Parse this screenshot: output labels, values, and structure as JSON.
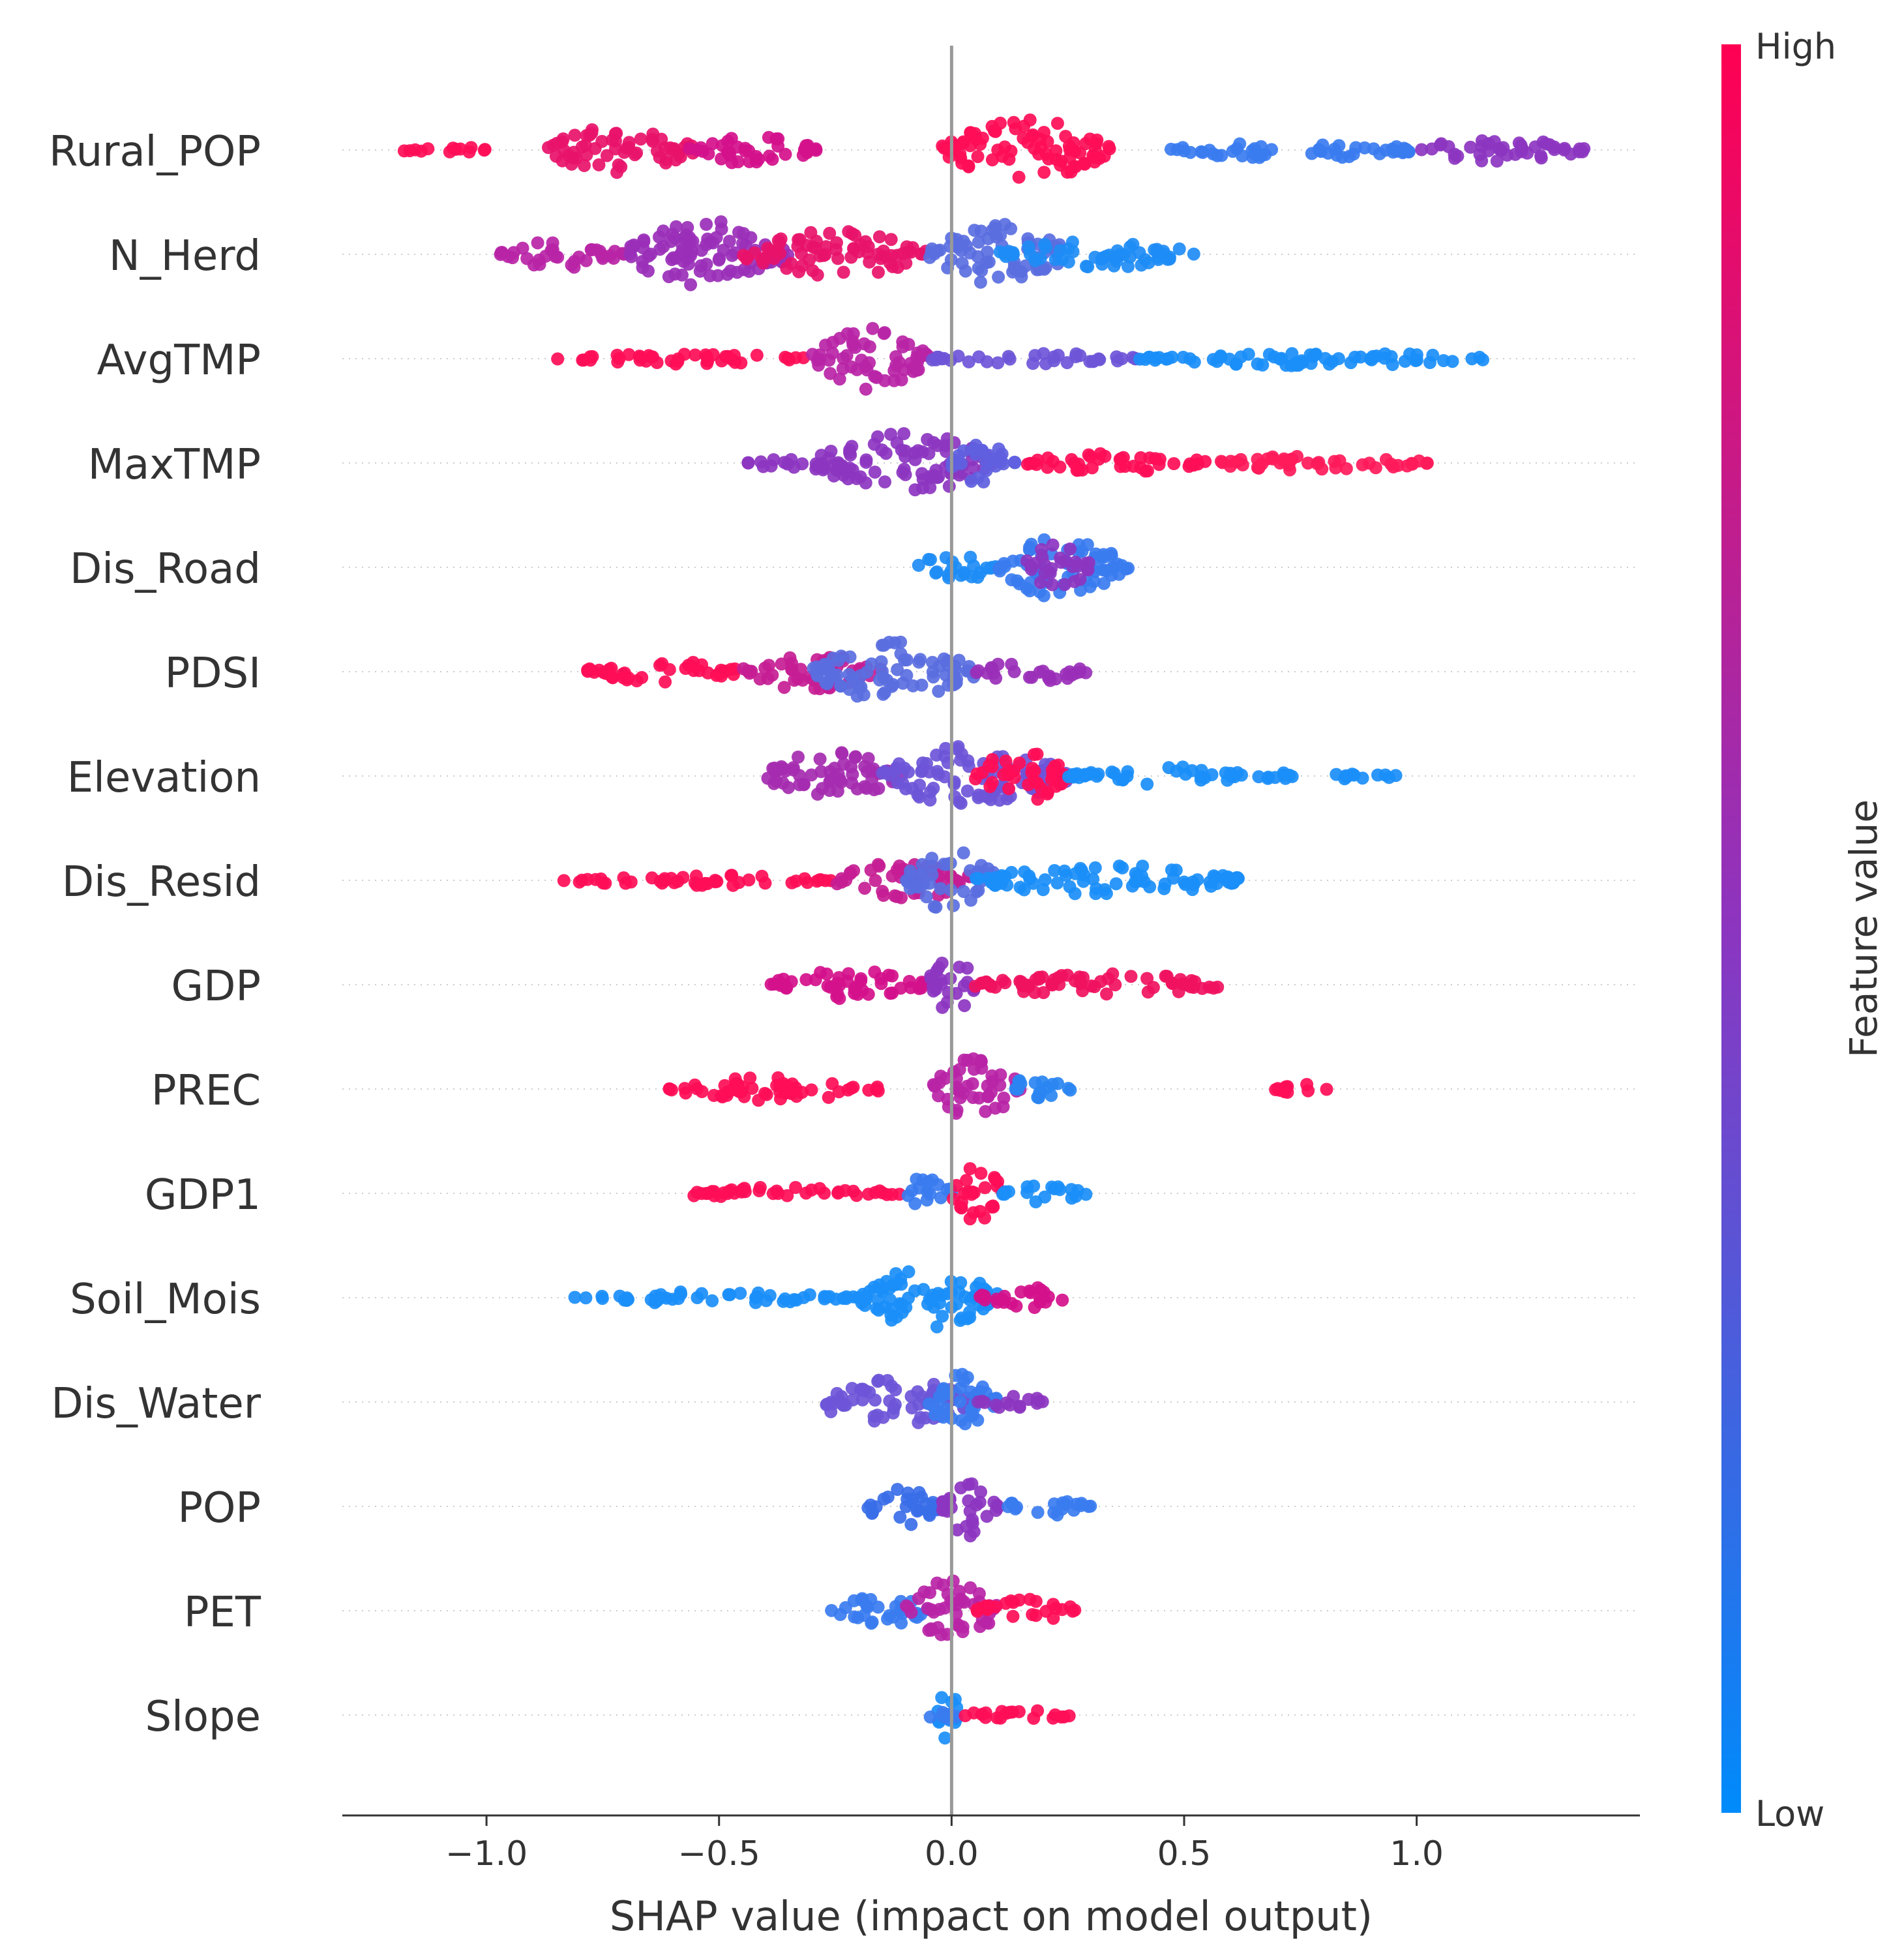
{
  "chart_data": {
    "type": "scatter",
    "subtype": "shap-beeswarm",
    "title": "",
    "xlabel": "SHAP value (impact on model output)",
    "ylabel": "",
    "xlim": [
      -1.31,
      1.48
    ],
    "xticks": [
      -1.0,
      -0.5,
      0.0,
      0.5,
      1.0
    ],
    "xtick_labels": [
      "−1.0",
      "−0.5",
      "0.0",
      "0.5",
      "1.0"
    ],
    "colorbar": {
      "label": "Feature value",
      "high_label": "High",
      "low_label": "Low",
      "high_color": "#ff0052",
      "mid_color": "#8c35c0",
      "low_color": "#008bfb"
    },
    "zero_line_color": "#999999",
    "features": [
      {
        "name": "Rural_POP",
        "min": -1.19,
        "max": 1.36,
        "low_value_direction": "positive",
        "segments": [
          [
            -1.19,
            -0.99,
            0.5,
            "#ff0d57"
          ],
          [
            -0.88,
            -0.55,
            3.0,
            "#e8126a"
          ],
          [
            -0.57,
            -0.29,
            2.0,
            "#d4108b"
          ],
          [
            -0.02,
            0.34,
            4.0,
            "#ff0d57"
          ],
          [
            0.47,
            1.0,
            1.2,
            "#3a7cf0"
          ],
          [
            1.0,
            1.36,
            1.6,
            "#8c35c0"
          ]
        ]
      },
      {
        "name": "N_Herd",
        "min": -0.97,
        "max": 0.53,
        "low_value_direction": "positive",
        "segments": [
          [
            -0.97,
            -0.7,
            1.8,
            "#b824a6"
          ],
          [
            -0.7,
            -0.35,
            4.5,
            "#9a2fb8"
          ],
          [
            -0.45,
            -0.05,
            3.0,
            "#e8126a"
          ],
          [
            -0.05,
            0.25,
            4.0,
            "#5a6ee0"
          ],
          [
            0.1,
            0.53,
            1.8,
            "#1e8cf5"
          ]
        ]
      },
      {
        "name": "AvgTMP",
        "min": -0.85,
        "max": 1.15,
        "low_value_direction": "positive",
        "segments": [
          [
            -0.85,
            -0.3,
            0.7,
            "#ff0d57"
          ],
          [
            -0.3,
            -0.05,
            4.0,
            "#b824a6"
          ],
          [
            -0.05,
            0.4,
            0.8,
            "#6e55d8"
          ],
          [
            0.4,
            1.15,
            1.0,
            "#1a8ef8"
          ]
        ]
      },
      {
        "name": "MaxTMP",
        "min": -0.44,
        "max": 1.03,
        "low_value_direction": "negative",
        "segments": [
          [
            -0.44,
            -0.3,
            0.7,
            "#8c35c0"
          ],
          [
            -0.3,
            0.1,
            4.0,
            "#8c35c0"
          ],
          [
            0.0,
            0.15,
            3.0,
            "#6060e0"
          ],
          [
            0.15,
            0.55,
            1.3,
            "#ff0d57"
          ],
          [
            0.55,
            1.03,
            1.0,
            "#ff1a5a"
          ]
        ]
      },
      {
        "name": "Dis_Road",
        "min": -0.08,
        "max": 0.38,
        "low_value_direction": "negative",
        "segments": [
          [
            -0.08,
            0.1,
            1.8,
            "#1e8cf5"
          ],
          [
            0.1,
            0.38,
            4.2,
            "#3a7cf0"
          ],
          [
            0.15,
            0.3,
            3.0,
            "#8c35c0"
          ]
        ]
      },
      {
        "name": "PDSI",
        "min": -0.8,
        "max": 0.29,
        "low_value_direction": "none",
        "segments": [
          [
            -0.8,
            -0.45,
            1.5,
            "#ff0d57"
          ],
          [
            -0.45,
            -0.15,
            2.5,
            "#c51d94"
          ],
          [
            -0.3,
            0.05,
            4.0,
            "#5a6ee0"
          ],
          [
            0.05,
            0.29,
            1.5,
            "#9a2fb8"
          ]
        ]
      },
      {
        "name": "Elevation",
        "min": -0.4,
        "max": 0.96,
        "low_value_direction": "positive",
        "segments": [
          [
            -0.4,
            -0.1,
            3.5,
            "#a52bb0"
          ],
          [
            -0.15,
            0.25,
            4.2,
            "#6e55d8"
          ],
          [
            0.05,
            0.25,
            3.5,
            "#ff0d57"
          ],
          [
            0.25,
            0.75,
            1.2,
            "#1a8ef8"
          ],
          [
            0.8,
            0.96,
            0.6,
            "#1a8ef8"
          ]
        ]
      },
      {
        "name": "Dis_Resid",
        "min": -0.84,
        "max": 0.62,
        "low_value_direction": "positive",
        "segments": [
          [
            -0.84,
            -0.25,
            0.7,
            "#ff0d57"
          ],
          [
            -0.25,
            0.05,
            2.5,
            "#c51d94"
          ],
          [
            -0.1,
            0.1,
            4.0,
            "#5a6ee0"
          ],
          [
            0.05,
            0.62,
            2.0,
            "#1a8ef8"
          ]
        ]
      },
      {
        "name": "GDP",
        "min": -0.39,
        "max": 0.6,
        "low_value_direction": "none",
        "segments": [
          [
            -0.39,
            -0.05,
            2.0,
            "#d4108b"
          ],
          [
            -0.05,
            0.05,
            4.0,
            "#8c35c0"
          ],
          [
            0.05,
            0.6,
            1.5,
            "#f0115f"
          ]
        ]
      },
      {
        "name": "PREC",
        "min": -0.62,
        "max": 0.83,
        "low_value_direction": "negative",
        "segments": [
          [
            -0.62,
            -0.15,
            1.5,
            "#ff0d57"
          ],
          [
            -0.05,
            0.15,
            4.0,
            "#b824a6"
          ],
          [
            0.1,
            0.26,
            1.3,
            "#2a86f2"
          ],
          [
            0.69,
            0.83,
            0.6,
            "#ff0d57"
          ]
        ]
      },
      {
        "name": "GDP1",
        "min": -0.61,
        "max": 0.29,
        "low_value_direction": "positive",
        "segments": [
          [
            -0.61,
            -0.1,
            0.8,
            "#ff0d57"
          ],
          [
            -0.1,
            0.0,
            2.5,
            "#3a7cf0"
          ],
          [
            0.0,
            0.11,
            4.0,
            "#ff0d57"
          ],
          [
            0.11,
            0.29,
            1.2,
            "#1a8ef8"
          ]
        ]
      },
      {
        "name": "Soil_Mois",
        "min": -0.81,
        "max": 0.25,
        "low_value_direction": "negative",
        "segments": [
          [
            -0.81,
            -0.2,
            0.8,
            "#1a8ef8"
          ],
          [
            -0.2,
            0.1,
            4.0,
            "#1a8ef8"
          ],
          [
            0.05,
            0.25,
            1.5,
            "#d4108b"
          ]
        ]
      },
      {
        "name": "Dis_Water",
        "min": -0.3,
        "max": 0.2,
        "low_value_direction": "none",
        "segments": [
          [
            -0.3,
            0.05,
            3.0,
            "#6e55d8"
          ],
          [
            -0.05,
            0.1,
            4.0,
            "#3a7cf0"
          ],
          [
            0.05,
            0.2,
            1.2,
            "#8c35c0"
          ]
        ]
      },
      {
        "name": "POP",
        "min": -0.18,
        "max": 0.3,
        "low_value_direction": "none",
        "segments": [
          [
            -0.18,
            -0.02,
            3.0,
            "#3a6ee8"
          ],
          [
            -0.02,
            0.1,
            4.0,
            "#8c35c0"
          ],
          [
            0.1,
            0.3,
            1.2,
            "#3a7cf0"
          ]
        ]
      },
      {
        "name": "PET",
        "min": -0.26,
        "max": 0.27,
        "low_value_direction": "negative",
        "segments": [
          [
            -0.26,
            -0.05,
            2.0,
            "#3a7cf0"
          ],
          [
            -0.1,
            0.1,
            4.0,
            "#b824a6"
          ],
          [
            0.05,
            0.27,
            1.5,
            "#ff0d57"
          ]
        ]
      },
      {
        "name": "Slope",
        "min": -0.08,
        "max": 0.27,
        "low_value_direction": "negative",
        "segments": [
          [
            -0.03,
            0.02,
            4.0,
            "#1a8ef8"
          ],
          [
            -0.08,
            0.02,
            0.8,
            "#3a7cf0"
          ],
          [
            0.02,
            0.27,
            0.7,
            "#ff0d57"
          ]
        ]
      }
    ]
  }
}
